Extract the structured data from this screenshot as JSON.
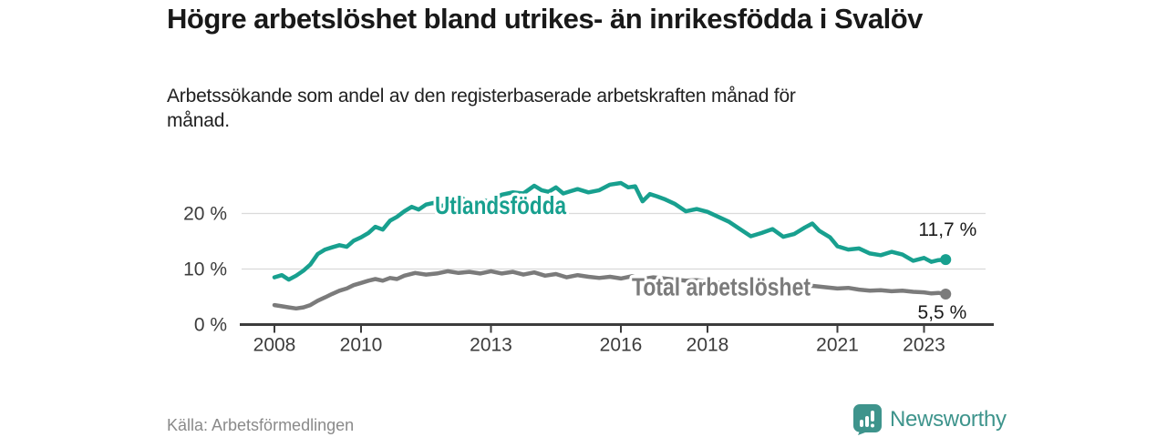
{
  "header": {
    "title": "Högre arbetslöshet bland utrikes- än inrikesfödda i Svalöv",
    "subtitle": "Arbetssökande som andel av den registerbaserade arbetskraften månad för månad."
  },
  "footer": {
    "source": "Källa: Arbetsförmedlingen",
    "brand": "Newsworthy"
  },
  "colors": {
    "accent_teal": "#18a08f",
    "series_gray": "#7b7b7b",
    "brand_teal": "#3e948c",
    "axis_text": "#3c3c3c",
    "value_text": "#1a1a1a",
    "grid": "#dadada",
    "axis_line": "#3c3c3c",
    "source_text": "#8a8a8a"
  },
  "chart_data": {
    "type": "line",
    "title": "Högre arbetslöshet bland utrikes- än inrikesfödda i Svalöv",
    "subtitle": "Arbetssökande som andel av den registerbaserade arbetskraften månad för månad.",
    "unit": "%",
    "grid": "horizontal",
    "legend_position": "inline-labels",
    "xlim": [
      2007.2,
      2024.6
    ],
    "ylim": [
      0,
      27
    ],
    "x_ticks": [
      2008,
      2010,
      2013,
      2016,
      2018,
      2021,
      2023
    ],
    "y_ticks": [
      {
        "value": 0,
        "label": "0 %"
      },
      {
        "value": 10,
        "label": "10 %"
      },
      {
        "value": 20,
        "label": "20 %"
      }
    ],
    "series": [
      {
        "name": "Utlandsfödda",
        "color": "#18a08f",
        "end_label": "11,7 %",
        "end_value": 11.7,
        "points": [
          [
            2008.0,
            8.5
          ],
          [
            2008.17,
            8.9
          ],
          [
            2008.33,
            8.1
          ],
          [
            2008.5,
            8.8
          ],
          [
            2008.67,
            9.7
          ],
          [
            2008.83,
            10.8
          ],
          [
            2009.0,
            12.7
          ],
          [
            2009.17,
            13.5
          ],
          [
            2009.33,
            13.9
          ],
          [
            2009.5,
            14.3
          ],
          [
            2009.67,
            14.0
          ],
          [
            2009.83,
            15.1
          ],
          [
            2010.0,
            15.7
          ],
          [
            2010.17,
            16.5
          ],
          [
            2010.33,
            17.6
          ],
          [
            2010.5,
            17.1
          ],
          [
            2010.67,
            18.7
          ],
          [
            2010.83,
            19.4
          ],
          [
            2011.0,
            20.4
          ],
          [
            2011.17,
            21.2
          ],
          [
            2011.33,
            20.7
          ],
          [
            2011.5,
            21.6
          ],
          [
            2011.67,
            21.9
          ],
          [
            2011.83,
            21.3
          ],
          [
            2012.0,
            21.7
          ],
          [
            2012.17,
            22.4
          ],
          [
            2012.33,
            22.8
          ],
          [
            2012.5,
            21.9
          ],
          [
            2012.67,
            21.7
          ],
          [
            2012.83,
            22.4
          ],
          [
            2013.0,
            22.1
          ],
          [
            2013.25,
            23.4
          ],
          [
            2013.5,
            23.8
          ],
          [
            2013.75,
            23.6
          ],
          [
            2014.0,
            25.0
          ],
          [
            2014.17,
            24.2
          ],
          [
            2014.33,
            23.9
          ],
          [
            2014.5,
            24.7
          ],
          [
            2014.67,
            23.6
          ],
          [
            2014.83,
            24.0
          ],
          [
            2015.0,
            24.4
          ],
          [
            2015.25,
            23.8
          ],
          [
            2015.5,
            24.2
          ],
          [
            2015.75,
            25.2
          ],
          [
            2016.0,
            25.5
          ],
          [
            2016.17,
            24.7
          ],
          [
            2016.33,
            24.9
          ],
          [
            2016.5,
            22.2
          ],
          [
            2016.67,
            23.5
          ],
          [
            2016.83,
            23.1
          ],
          [
            2017.0,
            22.6
          ],
          [
            2017.25,
            21.7
          ],
          [
            2017.5,
            20.4
          ],
          [
            2017.75,
            20.8
          ],
          [
            2018.0,
            20.3
          ],
          [
            2018.25,
            19.4
          ],
          [
            2018.5,
            18.5
          ],
          [
            2018.75,
            17.2
          ],
          [
            2019.0,
            15.9
          ],
          [
            2019.25,
            16.5
          ],
          [
            2019.5,
            17.2
          ],
          [
            2019.75,
            15.8
          ],
          [
            2020.0,
            16.3
          ],
          [
            2020.25,
            17.5
          ],
          [
            2020.42,
            18.2
          ],
          [
            2020.58,
            16.9
          ],
          [
            2020.83,
            15.7
          ],
          [
            2021.0,
            14.1
          ],
          [
            2021.25,
            13.5
          ],
          [
            2021.5,
            13.7
          ],
          [
            2021.75,
            12.8
          ],
          [
            2022.0,
            12.5
          ],
          [
            2022.25,
            13.1
          ],
          [
            2022.5,
            12.6
          ],
          [
            2022.75,
            11.5
          ],
          [
            2023.0,
            12.0
          ],
          [
            2023.17,
            11.3
          ],
          [
            2023.33,
            11.6
          ],
          [
            2023.5,
            11.7
          ]
        ]
      },
      {
        "name": "Total arbetslöshet",
        "color": "#7b7b7b",
        "end_label": "5,5 %",
        "end_value": 5.5,
        "points": [
          [
            2008.0,
            3.5
          ],
          [
            2008.17,
            3.3
          ],
          [
            2008.33,
            3.1
          ],
          [
            2008.5,
            2.9
          ],
          [
            2008.67,
            3.1
          ],
          [
            2008.83,
            3.5
          ],
          [
            2009.0,
            4.3
          ],
          [
            2009.17,
            4.9
          ],
          [
            2009.33,
            5.5
          ],
          [
            2009.5,
            6.1
          ],
          [
            2009.67,
            6.5
          ],
          [
            2009.83,
            7.1
          ],
          [
            2010.0,
            7.5
          ],
          [
            2010.17,
            7.9
          ],
          [
            2010.33,
            8.2
          ],
          [
            2010.5,
            7.9
          ],
          [
            2010.67,
            8.4
          ],
          [
            2010.83,
            8.2
          ],
          [
            2011.0,
            8.8
          ],
          [
            2011.25,
            9.3
          ],
          [
            2011.5,
            9.0
          ],
          [
            2011.75,
            9.2
          ],
          [
            2012.0,
            9.6
          ],
          [
            2012.25,
            9.3
          ],
          [
            2012.5,
            9.5
          ],
          [
            2012.75,
            9.2
          ],
          [
            2013.0,
            9.6
          ],
          [
            2013.25,
            9.2
          ],
          [
            2013.5,
            9.5
          ],
          [
            2013.75,
            9.0
          ],
          [
            2014.0,
            9.4
          ],
          [
            2014.25,
            8.8
          ],
          [
            2014.5,
            9.1
          ],
          [
            2014.75,
            8.5
          ],
          [
            2015.0,
            8.9
          ],
          [
            2015.25,
            8.6
          ],
          [
            2015.5,
            8.4
          ],
          [
            2015.75,
            8.6
          ],
          [
            2016.0,
            8.3
          ],
          [
            2016.25,
            8.7
          ],
          [
            2016.5,
            8.2
          ],
          [
            2016.75,
            8.5
          ],
          [
            2017.0,
            8.3
          ],
          [
            2017.25,
            8.1
          ],
          [
            2017.5,
            7.9
          ],
          [
            2017.75,
            8.0
          ],
          [
            2018.0,
            7.8
          ],
          [
            2018.25,
            7.5
          ],
          [
            2018.5,
            7.3
          ],
          [
            2018.75,
            7.2
          ],
          [
            2019.0,
            7.0
          ],
          [
            2019.25,
            7.1
          ],
          [
            2019.5,
            6.9
          ],
          [
            2019.75,
            7.0
          ],
          [
            2020.0,
            6.9
          ],
          [
            2020.25,
            7.1
          ],
          [
            2020.5,
            6.9
          ],
          [
            2020.75,
            6.7
          ],
          [
            2021.0,
            6.5
          ],
          [
            2021.25,
            6.6
          ],
          [
            2021.5,
            6.3
          ],
          [
            2021.75,
            6.1
          ],
          [
            2022.0,
            6.2
          ],
          [
            2022.25,
            6.0
          ],
          [
            2022.5,
            6.1
          ],
          [
            2022.75,
            5.9
          ],
          [
            2023.0,
            5.8
          ],
          [
            2023.17,
            5.6
          ],
          [
            2023.33,
            5.7
          ],
          [
            2023.5,
            5.5
          ]
        ]
      }
    ]
  }
}
